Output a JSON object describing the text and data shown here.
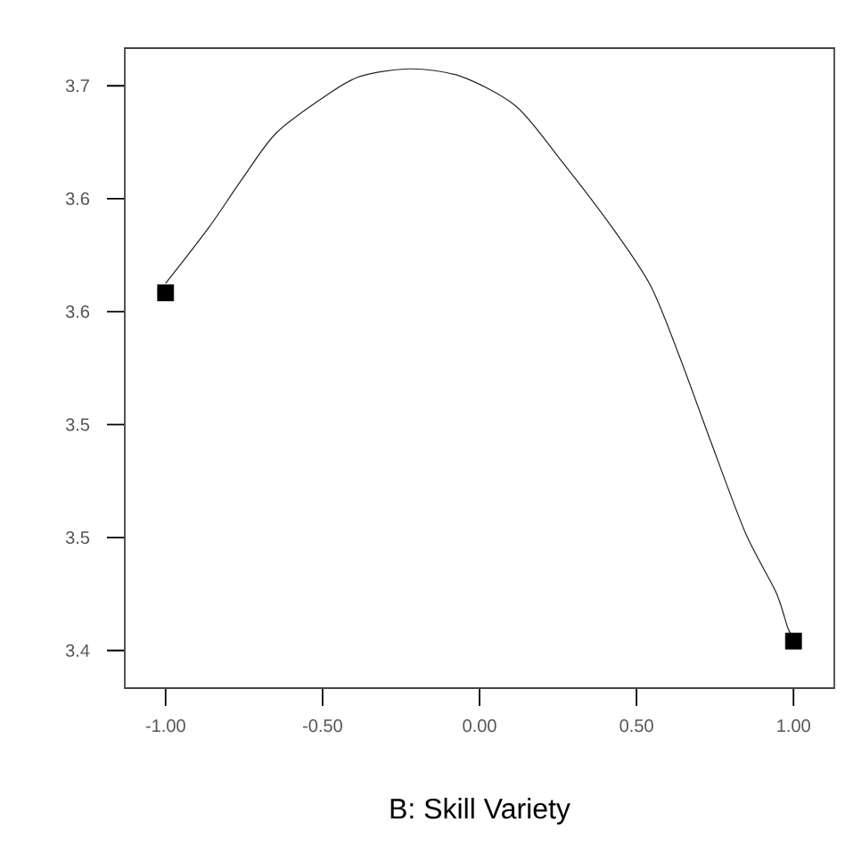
{
  "chart_data": {
    "type": "line",
    "xlabel": "B: Skill Variety",
    "xlim": [
      -1.13,
      1.13
    ],
    "ylim": [
      3.38,
      3.72
    ],
    "xticks": [
      {
        "value": -1,
        "label": "-1.00"
      },
      {
        "value": -0.5,
        "label": "-0.50"
      },
      {
        "value": 0,
        "label": "0.00"
      },
      {
        "value": 0.5,
        "label": "0.50"
      },
      {
        "value": 1,
        "label": "1.00"
      }
    ],
    "yticks": [
      3.7,
      {
        "value": 3.64,
        "label": "3.6"
      },
      {
        "value": 3.58,
        "label": "3.6"
      },
      {
        "value": 3.52,
        "label": "3.5"
      },
      {
        "value": 3.46,
        "label": "3.5"
      },
      3.4
    ],
    "series": [
      {
        "color": "#222222",
        "x": [
          -1,
          -0.861,
          -0.754,
          -0.647,
          -0.487,
          -0.38,
          -0.22,
          -0.06,
          0.117,
          0.261,
          0.421,
          0.544,
          0.635,
          0.741,
          0.848,
          0.944,
          0.982,
          1
        ],
        "values": [
          3.595,
          3.625,
          3.651,
          3.675,
          3.695,
          3.705,
          3.709,
          3.705,
          3.689,
          3.66,
          3.625,
          3.594,
          3.557,
          3.509,
          3.462,
          3.431,
          3.412,
          3.407
        ]
      },
      {
        "type": "scatter",
        "color": "#000000",
        "marker": "square",
        "x": [
          -1,
          1
        ],
        "values": [
          3.59,
          3.405
        ]
      }
    ]
  }
}
